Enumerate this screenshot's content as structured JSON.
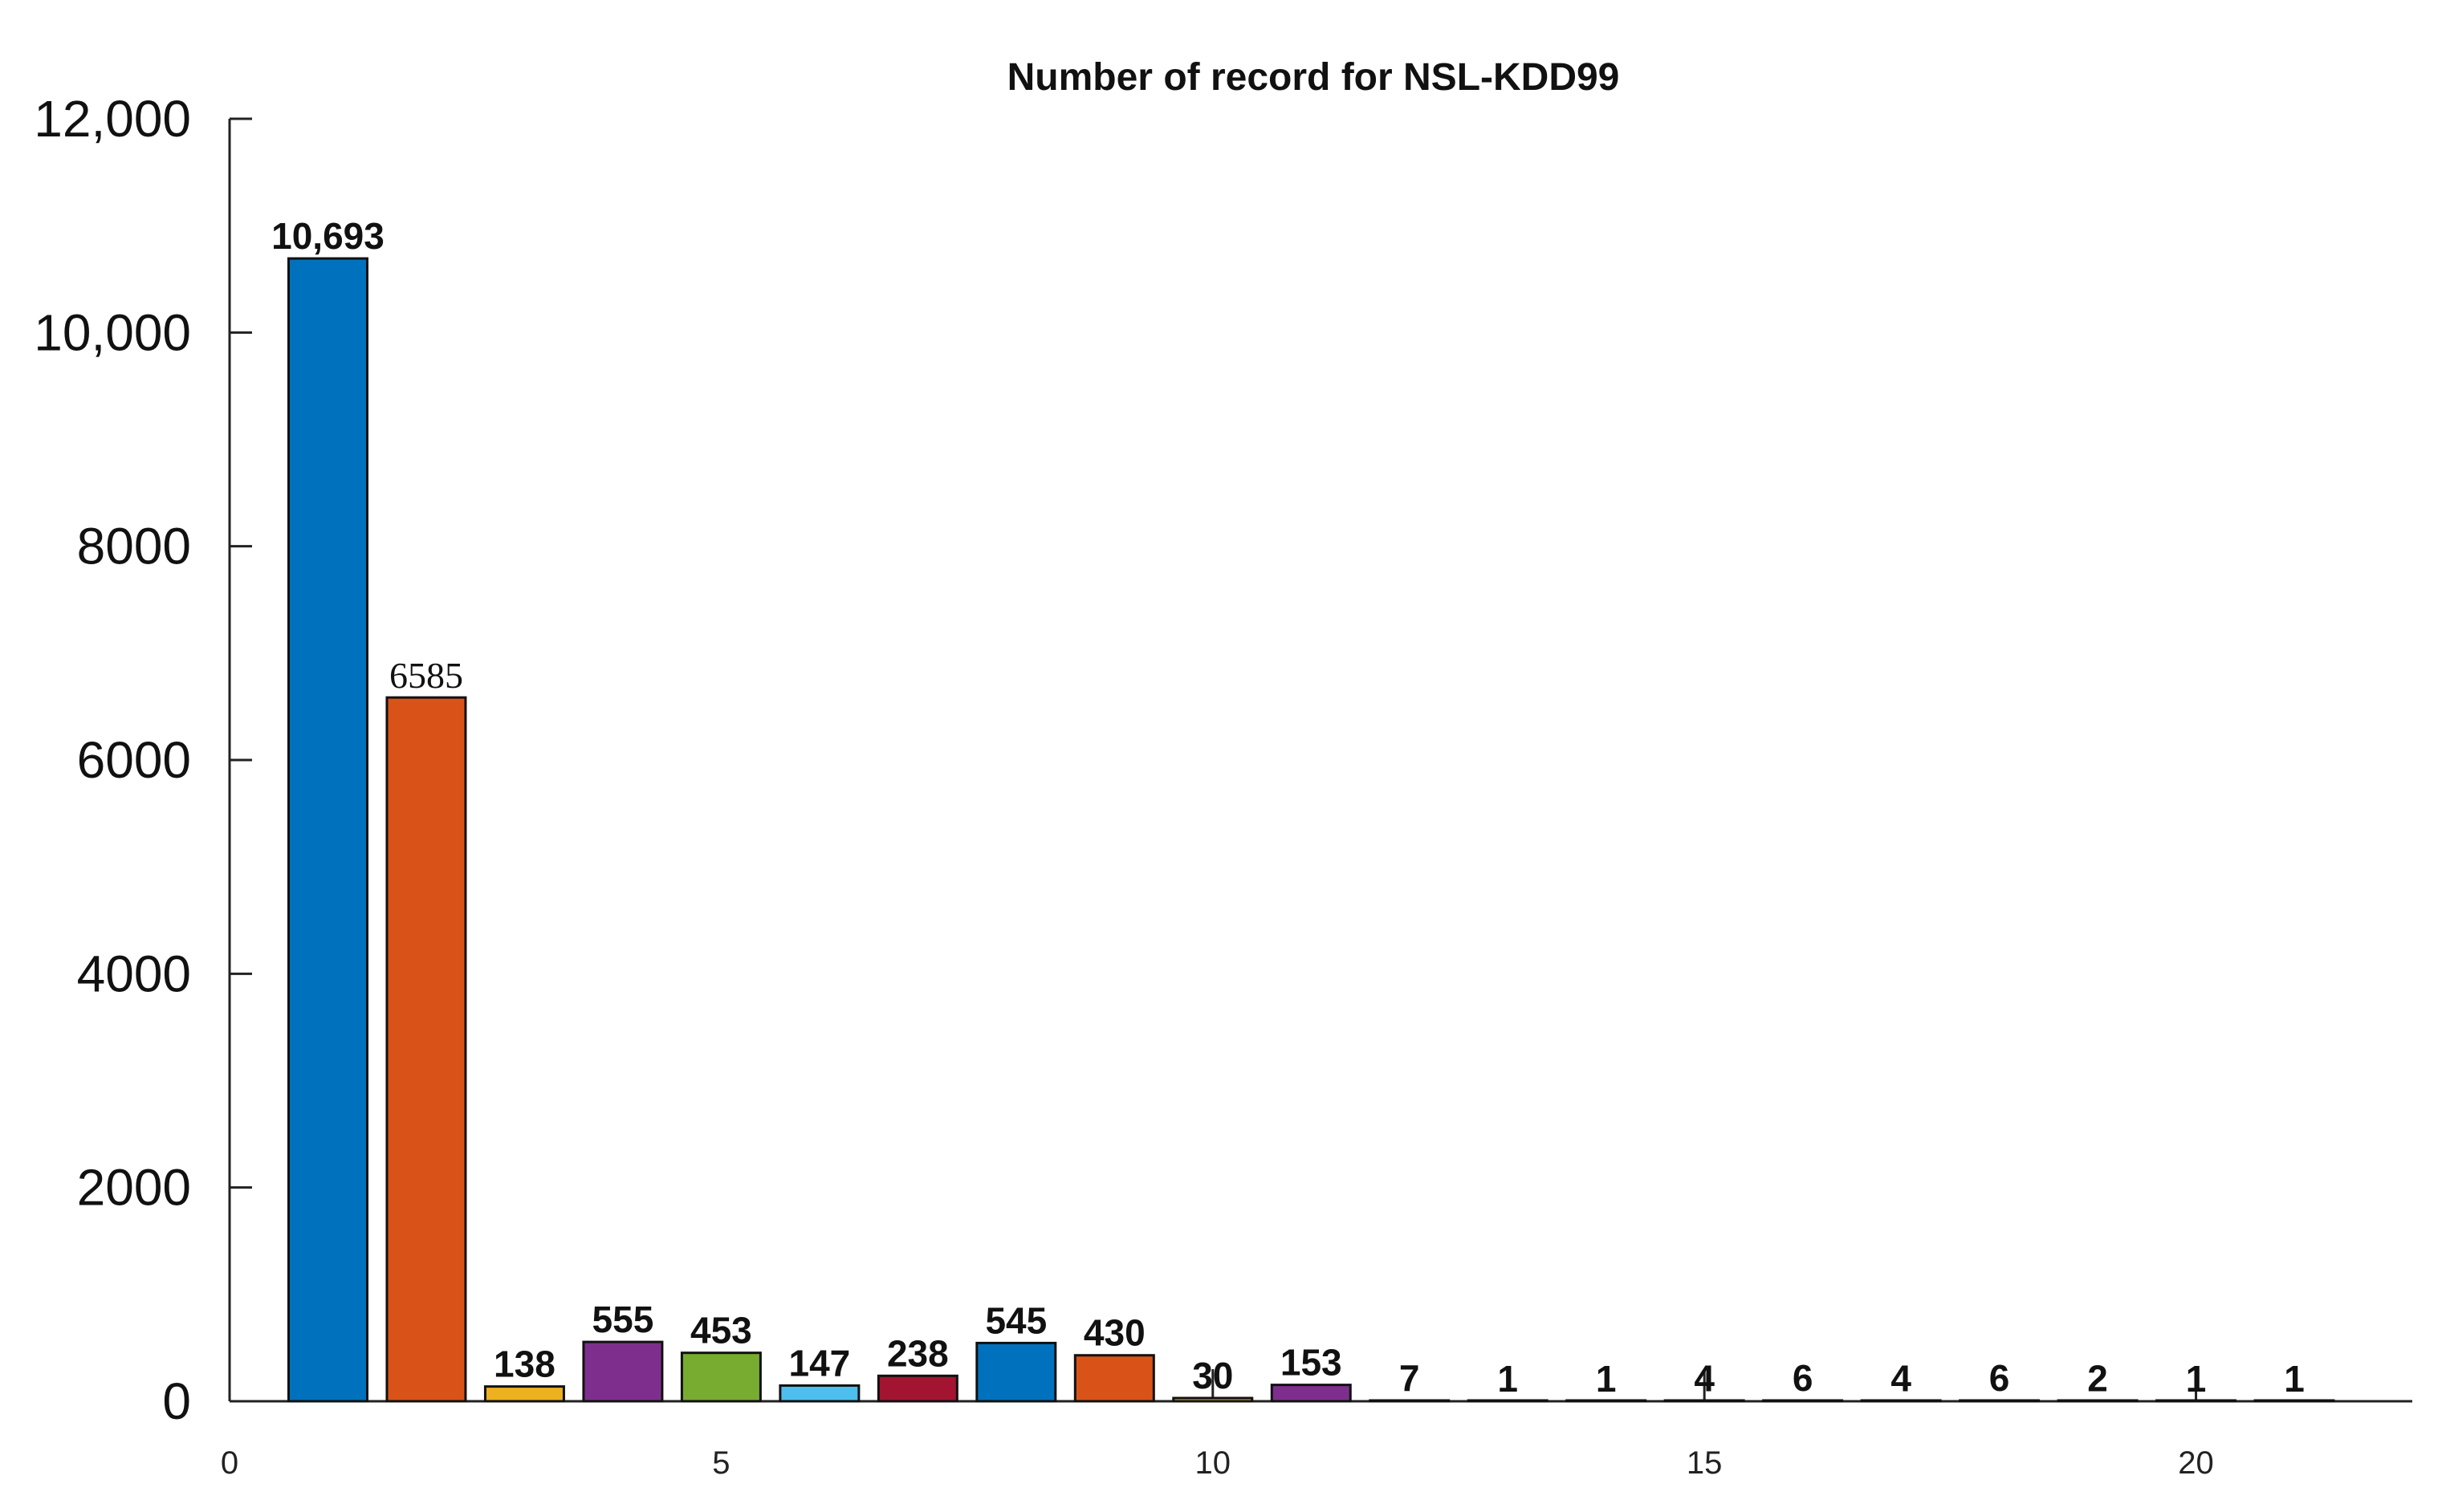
{
  "chart_data": {
    "type": "bar",
    "title": "Number of record for NSL-KDD99",
    "xlabel": "",
    "ylabel": "",
    "x": [
      1,
      2,
      3,
      4,
      5,
      6,
      7,
      8,
      9,
      10,
      11,
      12,
      13,
      14,
      15,
      16,
      17,
      18,
      19,
      20,
      21
    ],
    "values": [
      10693,
      6585,
      138,
      555,
      453,
      147,
      238,
      545,
      430,
      30,
      153,
      7,
      1,
      1,
      4,
      6,
      4,
      6,
      2,
      1,
      1
    ],
    "data_labels": [
      "10,693",
      "6585",
      "138",
      "555",
      "453",
      "147",
      "238",
      "545",
      "430",
      "30",
      "153",
      "7",
      "1",
      "1",
      "4",
      "6",
      "4",
      "6",
      "2",
      "1",
      "1"
    ],
    "colors": [
      "#0072BD",
      "#D95319",
      "#EDB120",
      "#7E2F8E",
      "#77AC30",
      "#4DBEEE",
      "#A2142F",
      "#0072BD",
      "#D95319",
      "#EDB120",
      "#7E2F8E",
      "#77AC30",
      "#4DBEEE",
      "#A2142F",
      "#0072BD",
      "#D95319",
      "#EDB120",
      "#7E2F8E",
      "#77AC30",
      "#4DBEEE",
      "#A2142F"
    ],
    "xlim": [
      0,
      22.2
    ],
    "ylim": [
      0,
      12000
    ],
    "xticks": [
      0,
      5,
      10,
      15,
      20
    ],
    "xtick_labels": [
      "0",
      "5",
      "10",
      "15",
      "20"
    ],
    "yticks": [
      0,
      2000,
      4000,
      6000,
      8000,
      10000,
      12000
    ],
    "ytick_labels": [
      "0",
      "2000",
      "4000",
      "6000",
      "8000",
      "10,000",
      "12,000"
    ],
    "grid": false,
    "legend": "none"
  }
}
